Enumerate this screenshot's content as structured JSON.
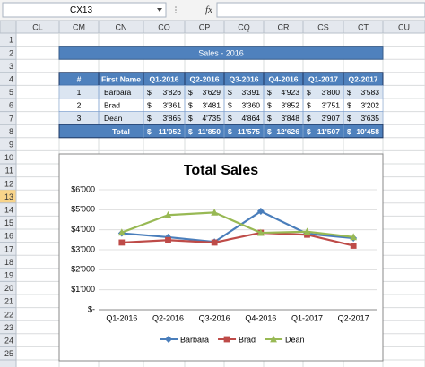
{
  "name_box": "CX13",
  "formula_icon": "fx",
  "columns": [
    "CL",
    "CM",
    "CN",
    "CO",
    "CP",
    "CQ",
    "CR",
    "CS",
    "CT",
    "CU"
  ],
  "rows": [
    "1",
    "2",
    "3",
    "4",
    "5",
    "6",
    "7",
    "8",
    "9",
    "10",
    "11",
    "12",
    "13",
    "14",
    "15",
    "16",
    "17",
    "18",
    "19",
    "20",
    "21",
    "22",
    "23",
    "24",
    "25"
  ],
  "table": {
    "title": "Sales - 2016",
    "header": [
      "#",
      "First Name",
      "Q1-2016",
      "Q2-2016",
      "Q3-2016",
      "Q4-2016",
      "Q1-2017",
      "Q2-2017"
    ],
    "rows": [
      {
        "num": "1",
        "name": "Barbara",
        "values": [
          [
            "$",
            "3'826"
          ],
          [
            "$",
            "3'629"
          ],
          [
            "$",
            "3'391"
          ],
          [
            "$",
            "4'923"
          ],
          [
            "$",
            "3'800"
          ],
          [
            "$",
            "3'583"
          ]
        ]
      },
      {
        "num": "2",
        "name": "Brad",
        "values": [
          [
            "$",
            "3'361"
          ],
          [
            "$",
            "3'481"
          ],
          [
            "$",
            "3'360"
          ],
          [
            "$",
            "3'852"
          ],
          [
            "$",
            "3'751"
          ],
          [
            "$",
            "3'202"
          ]
        ]
      },
      {
        "num": "3",
        "name": "Dean",
        "values": [
          [
            "$",
            "3'865"
          ],
          [
            "$",
            "4'735"
          ],
          [
            "$",
            "4'864"
          ],
          [
            "$",
            "3'848"
          ],
          [
            "$",
            "3'907"
          ],
          [
            "$",
            "3'635"
          ]
        ]
      }
    ],
    "total": {
      "label": "Total",
      "values": [
        [
          "$",
          "11'052"
        ],
        [
          "$",
          "11'850"
        ],
        [
          "$",
          "11'575"
        ],
        [
          "$",
          "12'626"
        ],
        [
          "$",
          "11'507"
        ],
        [
          "$",
          "10'458"
        ]
      ]
    }
  },
  "chart_data": {
    "type": "line",
    "title": "Total Sales",
    "categories": [
      "Q1-2016",
      "Q2-2016",
      "Q3-2016",
      "Q4-2016",
      "Q1-2017",
      "Q2-2017"
    ],
    "series": [
      {
        "name": "Barbara",
        "color": "#4a7ebb",
        "marker": "diamond",
        "values": [
          3826,
          3629,
          3391,
          4923,
          3800,
          3583
        ]
      },
      {
        "name": "Brad",
        "color": "#be4b48",
        "marker": "square",
        "values": [
          3361,
          3481,
          3360,
          3852,
          3751,
          3202
        ]
      },
      {
        "name": "Dean",
        "color": "#98b954",
        "marker": "triangle",
        "values": [
          3865,
          4735,
          4864,
          3848,
          3907,
          3635
        ]
      }
    ],
    "ylim": [
      0,
      6000
    ],
    "yticks": [
      {
        "value": 0,
        "label": "$-"
      },
      {
        "value": 1000,
        "label": "$1'000"
      },
      {
        "value": 2000,
        "label": "$2'000"
      },
      {
        "value": 3000,
        "label": "$3'000"
      },
      {
        "value": 4000,
        "label": "$4'000"
      },
      {
        "value": 5000,
        "label": "$5'000"
      },
      {
        "value": 6000,
        "label": "$6'000"
      }
    ],
    "grid": true,
    "legend": "bottom"
  }
}
